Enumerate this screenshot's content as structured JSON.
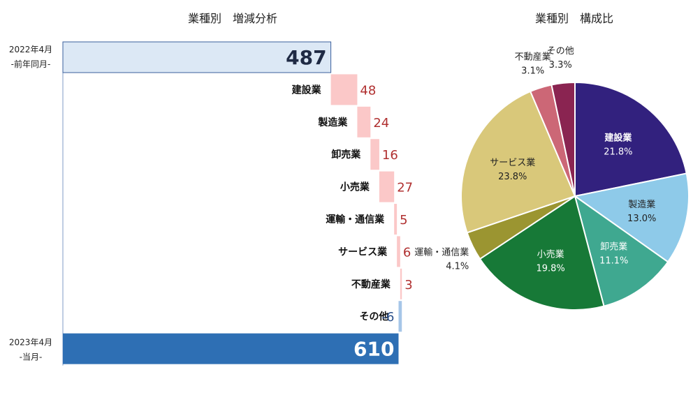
{
  "chart_data": [
    {
      "type": "bar",
      "subtype": "waterfall",
      "title": "業種別　増減分析",
      "start": {
        "label_line1": "2022年4月",
        "label_line2": "-前年同月-",
        "value": 487
      },
      "end": {
        "label_line1": "2023年4月",
        "label_line2": "-当月-",
        "value": 610
      },
      "categories": [
        "建設業",
        "製造業",
        "卸売業",
        "小売業",
        "運輸・通信業",
        "サービス業",
        "不動産業",
        "その他"
      ],
      "values": [
        48,
        24,
        16,
        27,
        5,
        6,
        3,
        -6
      ],
      "value_labels": [
        "48",
        "24",
        "16",
        "27",
        "5",
        "6",
        "3",
        "-6"
      ],
      "axis_max": 650,
      "colors": {
        "start": "#dce8f5",
        "end": "#2e6fb4",
        "increase": "#fbc8c8",
        "decrease": "#a6c6e8"
      }
    },
    {
      "type": "pie",
      "title": "業種別　構成比",
      "slices": [
        {
          "label": "建設業",
          "pct_label": "21.8%",
          "value": 21.8,
          "color": "#32217e"
        },
        {
          "label": "製造業",
          "pct_label": "13.0%",
          "value": 13.0,
          "color": "#8ecae9"
        },
        {
          "label": "卸売業",
          "pct_label": "11.1%",
          "value": 11.1,
          "color": "#3fa890"
        },
        {
          "label": "小売業",
          "pct_label": "19.8%",
          "value": 19.8,
          "color": "#177937"
        },
        {
          "label": "運輸・通信業",
          "pct_label": "4.1%",
          "value": 4.1,
          "color": "#9b9531"
        },
        {
          "label": "サービス業",
          "pct_label": "23.8%",
          "value": 23.8,
          "color": "#d9c87a"
        },
        {
          "label": "不動産業",
          "pct_label": "3.1%",
          "value": 3.1,
          "color": "#cc6776"
        },
        {
          "label": "その他",
          "pct_label": "3.3%",
          "value": 3.3,
          "color": "#8a2451"
        }
      ]
    }
  ]
}
